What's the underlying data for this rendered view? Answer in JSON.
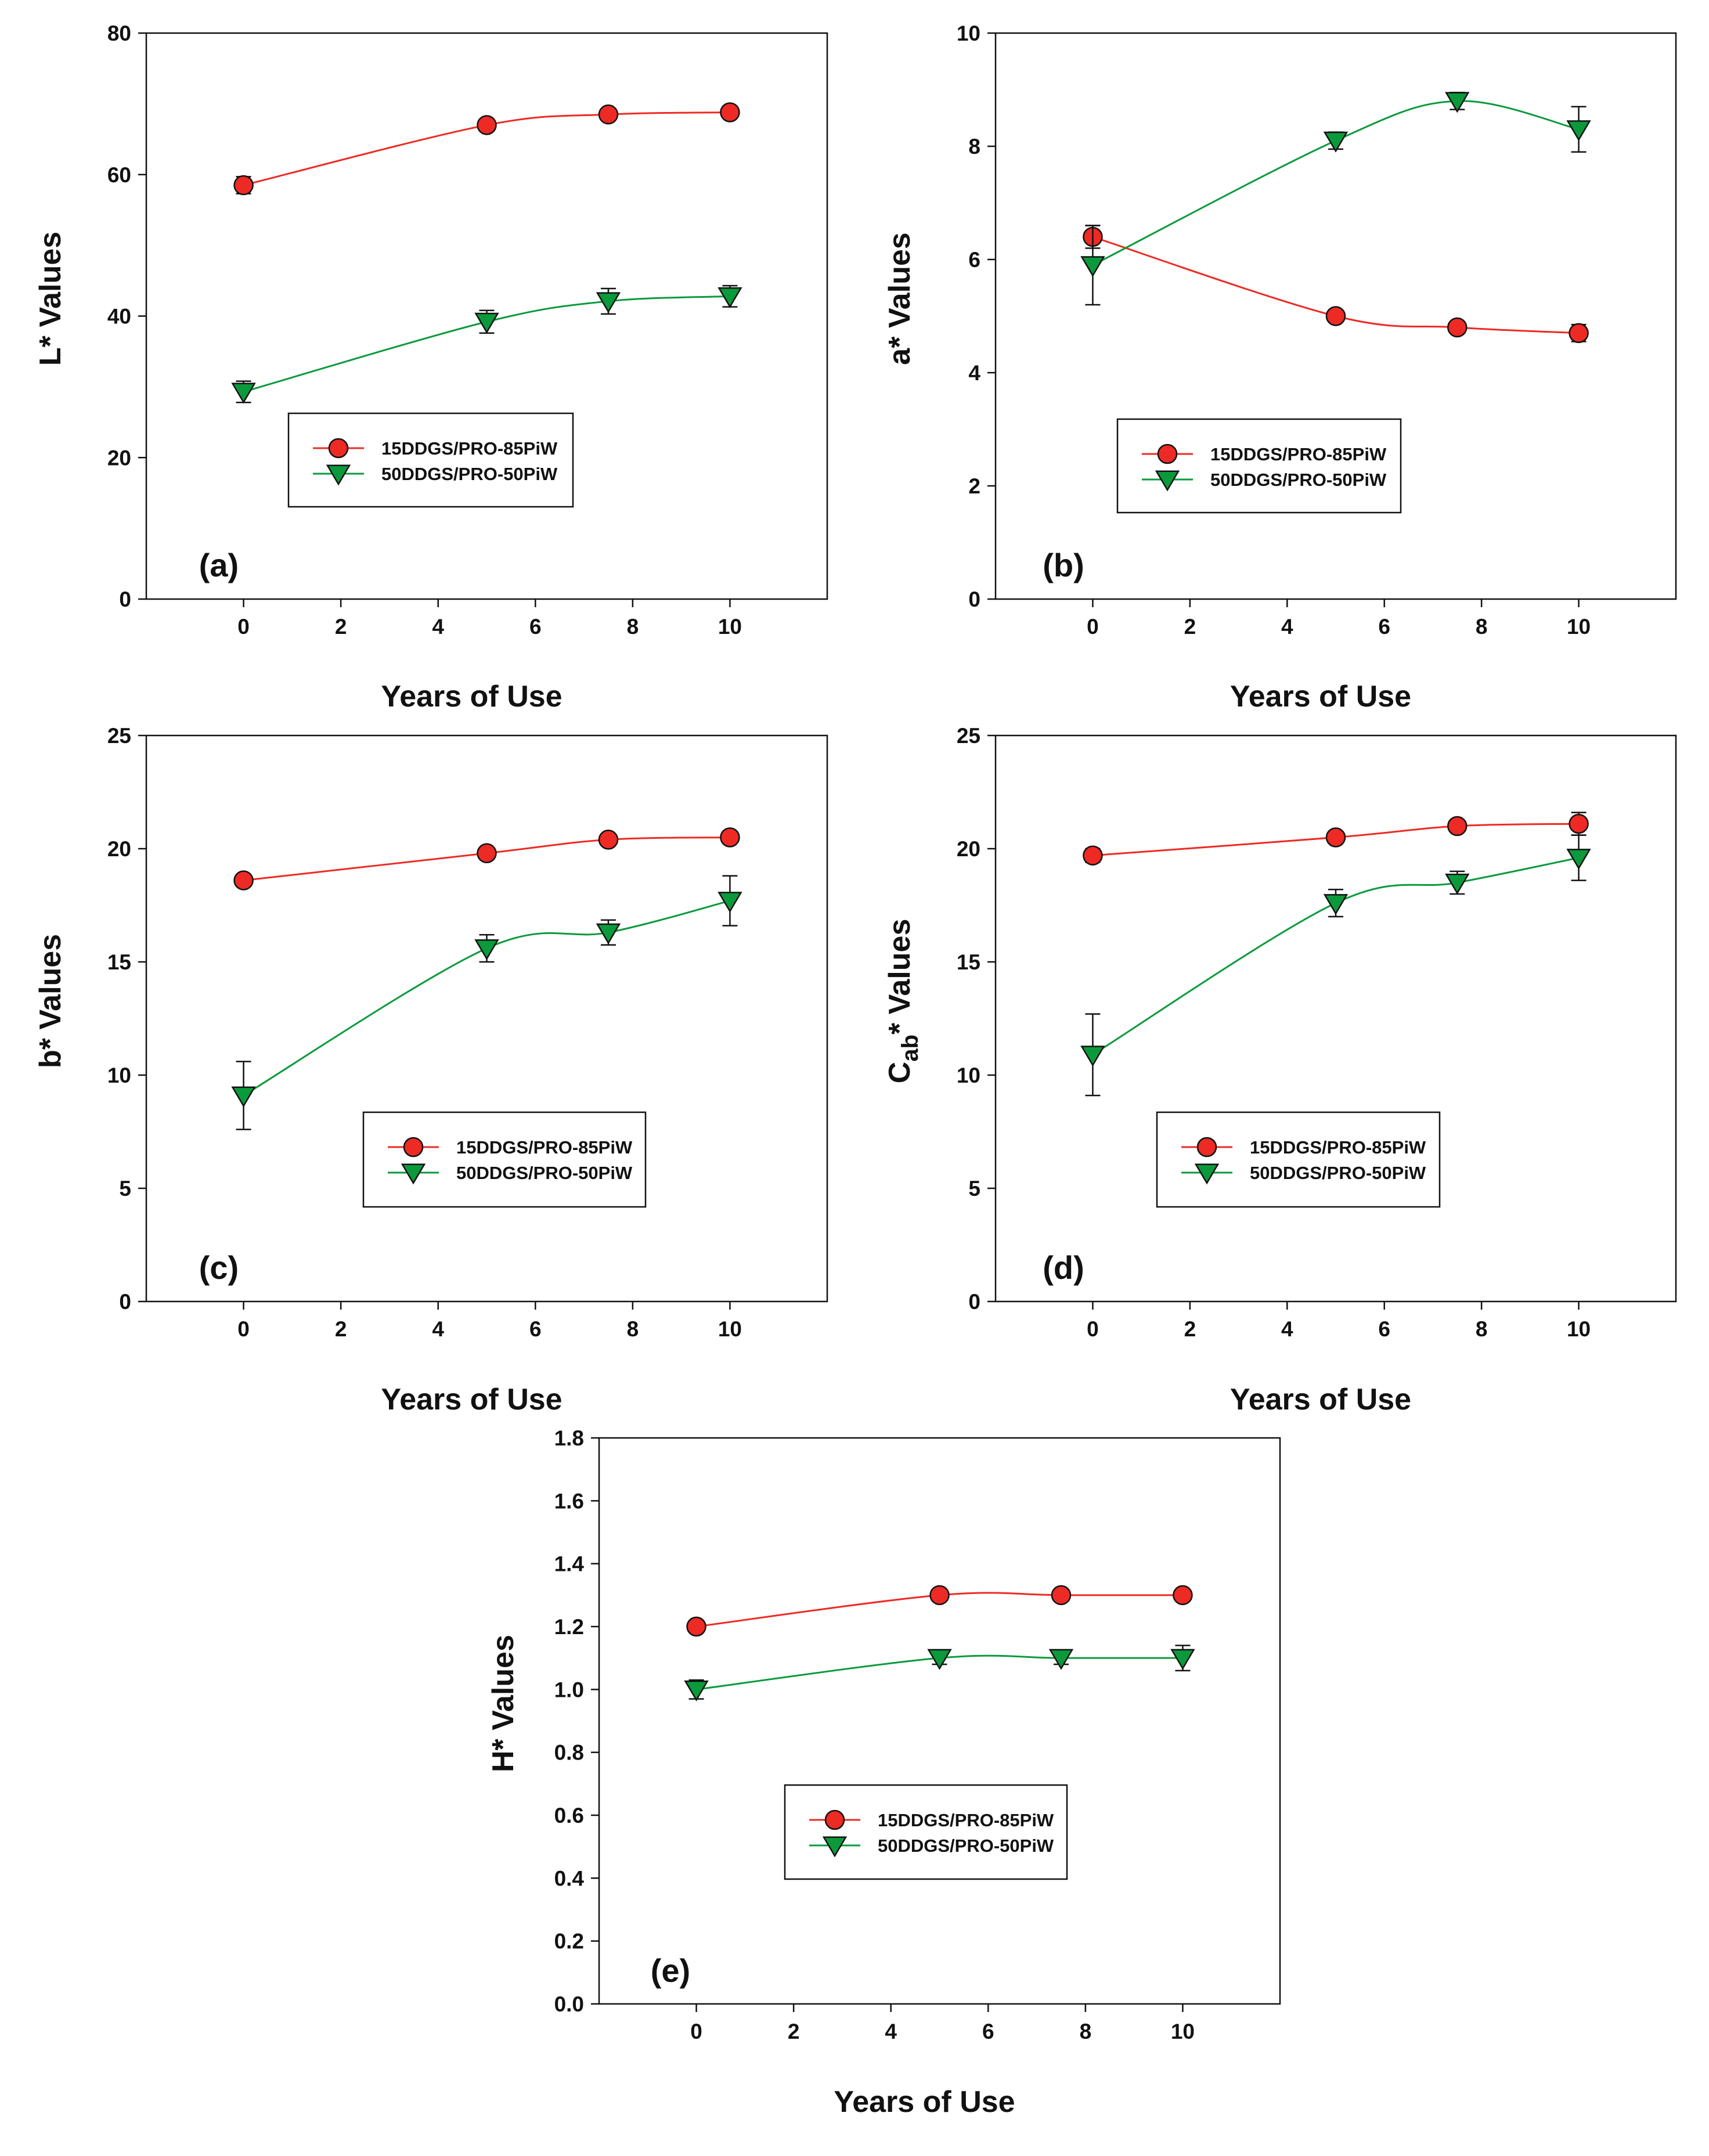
{
  "figure": {
    "x_axis_title": "Years of Use",
    "x_ticks": [
      "0",
      "2",
      "4",
      "6",
      "8",
      "10"
    ],
    "legend": [
      "15DDGS/PRO-85PiW",
      "50DDGS/PRO-50PiW"
    ],
    "series_colors": {
      "15DDGS/PRO-85PiW": "#ee2a24",
      "50DDGS/PRO-50PiW": "#0a9a3c"
    }
  },
  "chart_data": [
    {
      "type": "line",
      "panel": "(a)",
      "ylabel": "L* Values",
      "xlabel": "Years of Use",
      "xlim": [
        -2,
        12
      ],
      "ylim": [
        0,
        80
      ],
      "y_ticks": [
        "0",
        "20",
        "40",
        "60",
        "80"
      ],
      "x": [
        0,
        5,
        7.5,
        10
      ],
      "series": [
        {
          "name": "15DDGS/PRO-85PiW",
          "marker": "circle",
          "values": [
            58.5,
            67,
            68.5,
            68.8
          ],
          "errors": [
            1.2,
            0.8,
            0.8,
            0.8
          ]
        },
        {
          "name": "50DDGS/PRO-50PiW",
          "marker": "triangle-down",
          "values": [
            29.3,
            39.2,
            42.1,
            42.8
          ],
          "errors": [
            1.5,
            1.6,
            1.8,
            1.5
          ]
        }
      ]
    },
    {
      "type": "line",
      "panel": "(b)",
      "ylabel": "a* Values",
      "xlabel": "Years of Use",
      "xlim": [
        -2,
        12
      ],
      "ylim": [
        0,
        10
      ],
      "y_ticks": [
        "0",
        "2",
        "4",
        "6",
        "8",
        "10"
      ],
      "x": [
        0,
        5,
        7.5,
        10
      ],
      "series": [
        {
          "name": "15DDGS/PRO-85PiW",
          "marker": "circle",
          "values": [
            6.4,
            5.0,
            4.8,
            4.7
          ],
          "errors": [
            0.2,
            0.1,
            0.1,
            0.15
          ]
        },
        {
          "name": "50DDGS/PRO-50PiW",
          "marker": "triangle-down",
          "values": [
            5.9,
            8.1,
            8.8,
            8.3
          ],
          "errors": [
            0.7,
            0.15,
            0.15,
            0.4
          ]
        }
      ]
    },
    {
      "type": "line",
      "panel": "(c)",
      "ylabel": "b* Values",
      "xlabel": "Years of Use",
      "xlim": [
        -2,
        12
      ],
      "ylim": [
        0,
        25
      ],
      "y_ticks": [
        "0",
        "5",
        "10",
        "15",
        "20",
        "25"
      ],
      "x": [
        0,
        5,
        7.5,
        10
      ],
      "series": [
        {
          "name": "15DDGS/PRO-85PiW",
          "marker": "circle",
          "values": [
            18.6,
            19.8,
            20.4,
            20.5
          ],
          "errors": [
            0.2,
            0.2,
            0.2,
            0.2
          ]
        },
        {
          "name": "50DDGS/PRO-50PiW",
          "marker": "triangle-down",
          "values": [
            9.1,
            15.6,
            16.3,
            17.7
          ],
          "errors": [
            1.5,
            0.6,
            0.55,
            1.1
          ]
        }
      ]
    },
    {
      "type": "line",
      "panel": "(d)",
      "ylabel": "Cab* Values",
      "ylabel_main": "C",
      "ylabel_sub": "ab",
      "ylabel_rest": "* Values",
      "xlabel": "Years of Use",
      "xlim": [
        -2,
        12
      ],
      "ylim": [
        0,
        25
      ],
      "y_ticks": [
        "0",
        "5",
        "10",
        "15",
        "20",
        "25"
      ],
      "x": [
        0,
        5,
        7.5,
        10
      ],
      "series": [
        {
          "name": "15DDGS/PRO-85PiW",
          "marker": "circle",
          "values": [
            19.7,
            20.5,
            21.0,
            21.1
          ],
          "errors": [
            0.3,
            0.2,
            0.2,
            0.5
          ]
        },
        {
          "name": "50DDGS/PRO-50PiW",
          "marker": "triangle-down",
          "values": [
            10.9,
            17.6,
            18.5,
            19.6
          ],
          "errors": [
            1.8,
            0.6,
            0.5,
            1.0
          ]
        }
      ]
    },
    {
      "type": "line",
      "panel": "(e)",
      "ylabel": "H* Values",
      "xlabel": "Years of Use",
      "xlim": [
        -2,
        12
      ],
      "ylim": [
        0,
        1.8
      ],
      "y_ticks": [
        "0.0",
        "0.2",
        "0.4",
        "0.6",
        "0.8",
        "1.0",
        "1.2",
        "1.4",
        "1.6",
        "1.8"
      ],
      "x": [
        0,
        5,
        7.5,
        10
      ],
      "series": [
        {
          "name": "15DDGS/PRO-85PiW",
          "marker": "circle",
          "values": [
            1.2,
            1.3,
            1.3,
            1.3
          ],
          "errors": [
            0.01,
            0.01,
            0.01,
            0.01
          ]
        },
        {
          "name": "50DDGS/PRO-50PiW",
          "marker": "triangle-down",
          "values": [
            1.0,
            1.1,
            1.1,
            1.1
          ],
          "errors": [
            0.03,
            0.02,
            0.02,
            0.04
          ]
        }
      ]
    }
  ]
}
